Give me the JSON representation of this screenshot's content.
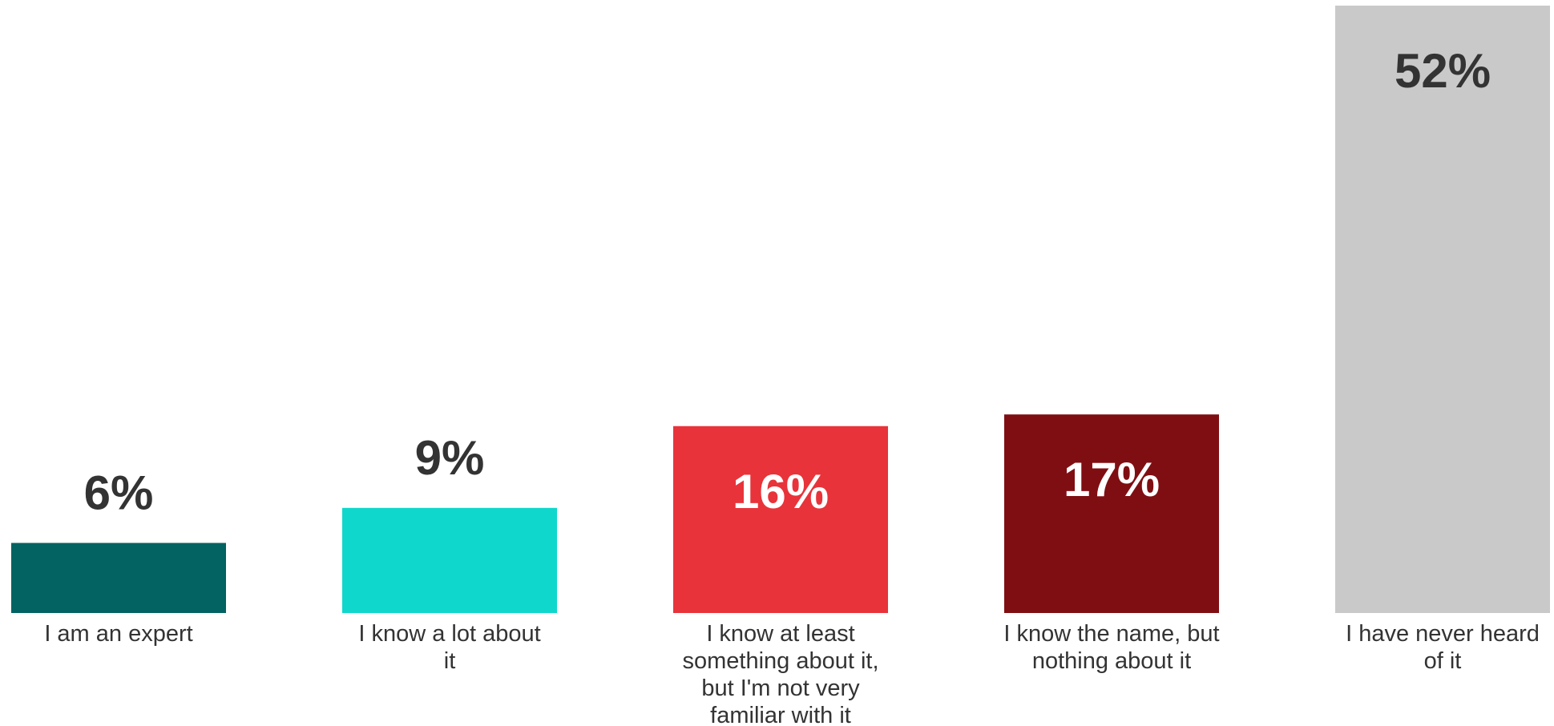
{
  "chart_data": {
    "type": "bar",
    "title": "",
    "xlabel": "",
    "ylabel": "",
    "ylim": [
      0,
      52
    ],
    "grid": false,
    "legend": "none",
    "categories": [
      "I am an expert",
      "I know a lot about it",
      "I know at least something about it, but I'm not very familiar with it",
      "I know the name, but nothing about it",
      "I have never heard of it"
    ],
    "category_lines": [
      [
        "I am an expert"
      ],
      [
        "I know a lot about",
        "it"
      ],
      [
        "I know at least",
        "something about it,",
        "but I'm not very",
        "familiar with it"
      ],
      [
        "I know the name, but",
        "nothing about it"
      ],
      [
        "I have never heard",
        "of it"
      ]
    ],
    "values": [
      6,
      9,
      16,
      17,
      52
    ],
    "data_labels": [
      "6%",
      "9%",
      "16%",
      "17%",
      "52%"
    ],
    "colors": [
      "#036262",
      "#0fd7cc",
      "#e8333a",
      "#7f0e12",
      "#c9c9c9"
    ],
    "label_colors": [
      "#333333",
      "#333333",
      "#ffffff",
      "#ffffff",
      "#333333"
    ]
  }
}
